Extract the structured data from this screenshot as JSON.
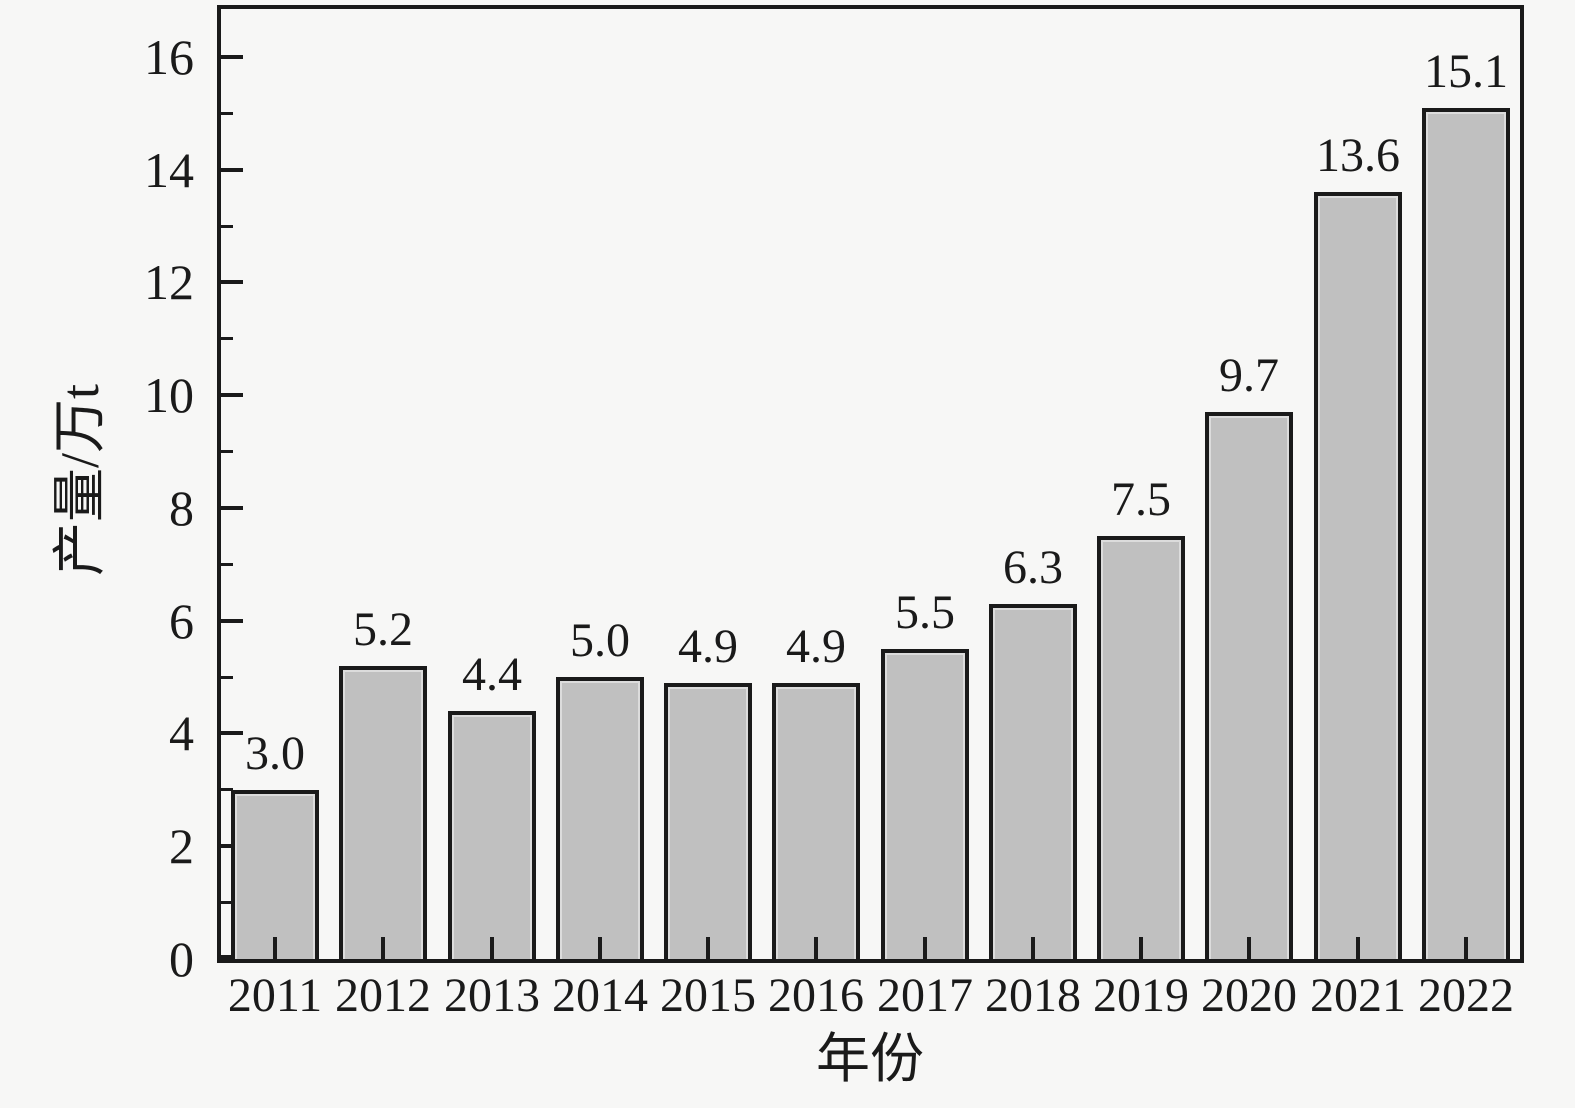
{
  "chart_data": {
    "type": "bar",
    "title": "",
    "xlabel": "年份",
    "ylabel": "产量/万t",
    "categories": [
      "2011",
      "2012",
      "2013",
      "2014",
      "2015",
      "2016",
      "2017",
      "2018",
      "2019",
      "2020",
      "2021",
      "2022"
    ],
    "values": [
      3.0,
      5.2,
      4.4,
      5.0,
      4.9,
      4.9,
      5.5,
      6.3,
      7.5,
      9.7,
      13.6,
      15.1
    ],
    "bar_labels": [
      "3.0",
      "5.2",
      "4.4",
      "5.0",
      "4.9",
      "4.9",
      "5.5",
      "6.3",
      "7.5",
      "9.7",
      "13.6",
      "15.1"
    ],
    "ylim": [
      0,
      16.85
    ],
    "y_major_ticks": [
      0,
      2,
      4,
      6,
      8,
      10,
      12,
      14,
      16
    ],
    "y_major_tick_labels": [
      "0",
      "2",
      "4",
      "6",
      "8",
      "10",
      "12",
      "14",
      "16"
    ],
    "y_minor_ticks": [
      1,
      3,
      5,
      7,
      9,
      11,
      13,
      15
    ],
    "grid": false,
    "legend": null,
    "tick_direction": "in",
    "colors": {
      "background": "#f7f7f6",
      "bar_fill": "#c0c0c0",
      "bar_inner_highlight": "#dcdcdc",
      "axis_and_border": "#1a1a1a",
      "text": "#1a1a1a"
    }
  }
}
